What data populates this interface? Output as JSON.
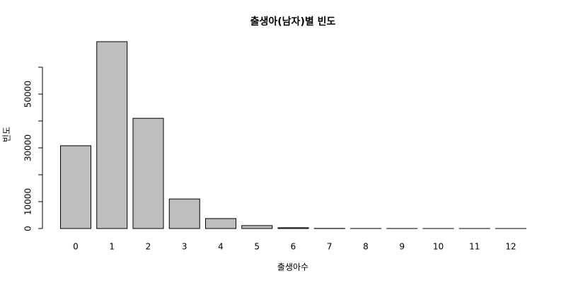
{
  "chart_data": {
    "type": "bar",
    "title": "출생아(남자)별 빈도",
    "x_label": "출생아수",
    "y_label": "빈도",
    "categories": [
      "0",
      "1",
      "2",
      "3",
      "4",
      "5",
      "6",
      "7",
      "8",
      "9",
      "10",
      "11",
      "12"
    ],
    "values": [
      30800,
      69500,
      41000,
      11000,
      3700,
      1100,
      300,
      50,
      10,
      5,
      2,
      1,
      1
    ],
    "color": "#bebebe",
    "ylim": [
      0,
      70000
    ],
    "yticks": [
      0,
      10000,
      30000,
      50000
    ],
    "minor_yticks": [
      20000,
      40000,
      60000
    ],
    "grid": false
  }
}
